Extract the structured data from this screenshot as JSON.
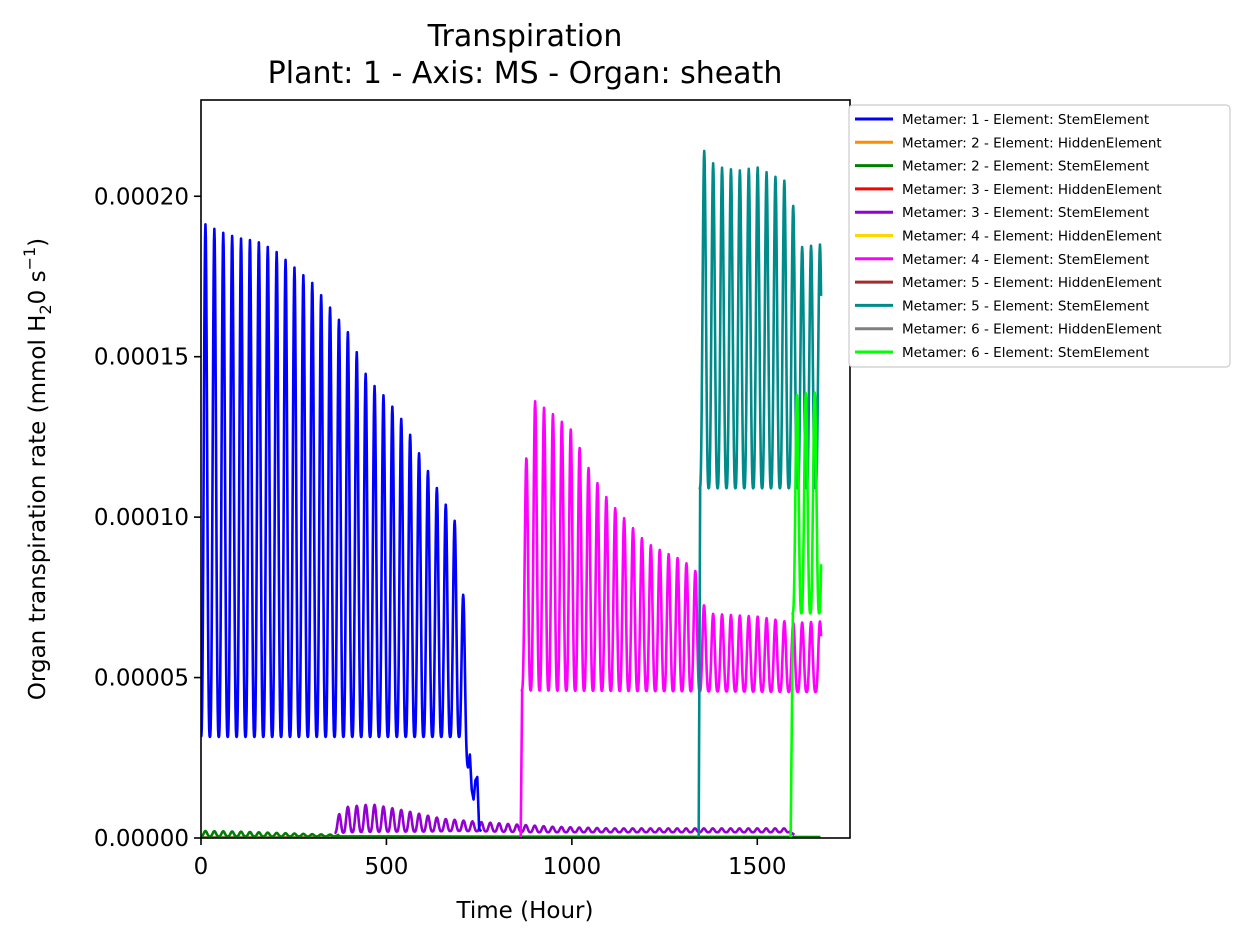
{
  "chart_data": {
    "type": "line",
    "title": "Transpiration",
    "subtitle": "Plant: 1 - Axis: MS - Organ: sheath",
    "xlabel": "Time (Hour)",
    "ylabel_prefix": "Organ transpiration rate (mmol H",
    "ylabel_sub": "2",
    "ylabel_mid": "0 s",
    "ylabel_sup": "−1",
    "ylabel_suffix": ")",
    "xlim": [
      0,
      1750
    ],
    "ylim": [
      0,
      0.00023
    ],
    "x_ticks": [
      0,
      500,
      1000,
      1500
    ],
    "x_tick_labels": [
      "0",
      "500",
      "1000",
      "1500"
    ],
    "y_ticks": [
      0,
      5e-05,
      0.0001,
      0.00015,
      0.0002
    ],
    "y_tick_labels": [
      "0.00000",
      "0.00005",
      "0.00010",
      "0.00015",
      "0.00020"
    ],
    "grid": false,
    "legend_placement": "outside upper right",
    "series": [
      {
        "name": "Metamer: 1 - Element: StemElement",
        "color": "#0000ff",
        "oscillating": true,
        "start": 0,
        "end": 720,
        "period": 24,
        "base": [
          [
            0,
            3.15e-05
          ],
          [
            700,
            3.15e-05
          ],
          [
            710,
            2.5e-05
          ],
          [
            720,
            2.2e-05
          ]
        ],
        "peak": [
          [
            0,
            0.000192
          ],
          [
            50,
            0.000189
          ],
          [
            100,
            0.000187
          ],
          [
            150,
            0.000186
          ],
          [
            200,
            0.000183
          ],
          [
            250,
            0.000178
          ],
          [
            300,
            0.000173
          ],
          [
            350,
            0.000165
          ],
          [
            400,
            0.000157
          ],
          [
            450,
            0.000143
          ],
          [
            500,
            0.000137
          ],
          [
            550,
            0.000129
          ],
          [
            600,
            0.000117
          ],
          [
            650,
            0.000106
          ],
          [
            700,
            9.55e-05
          ],
          [
            715,
            5.6e-05
          ]
        ],
        "tail": [
          [
            720,
            2.2e-05
          ],
          [
            725,
            2.6e-05
          ],
          [
            730,
            1.5e-05
          ],
          [
            735,
            1.2e-05
          ],
          [
            740,
            1.8e-05
          ],
          [
            745,
            1.9e-05
          ],
          [
            750,
            3e-06
          ],
          [
            755,
            2e-06
          ]
        ]
      },
      {
        "name": "Metamer: 2 - Element: HiddenElement",
        "color": "#ff8c00",
        "oscillating": false,
        "points": [
          [
            0,
            2e-07
          ],
          [
            1670,
            2e-07
          ]
        ]
      },
      {
        "name": "Metamer: 2 - Element: StemElement",
        "color": "#008000",
        "oscillating": true,
        "start": 0,
        "end": 370,
        "period": 24,
        "base": [
          [
            0,
            5e-07
          ],
          [
            370,
            5e-07
          ]
        ],
        "peak": [
          [
            0,
            2.2e-06
          ],
          [
            100,
            2e-06
          ],
          [
            200,
            1.6e-06
          ],
          [
            300,
            1.2e-06
          ],
          [
            370,
            1e-06
          ]
        ],
        "tail": [
          [
            370,
            5e-07
          ],
          [
            1670,
            3e-07
          ]
        ]
      },
      {
        "name": "Metamer: 3 - Element: HiddenElement",
        "color": "#ff0000",
        "oscillating": false,
        "points": [
          [
            0,
            1e-07
          ],
          [
            1670,
            1e-07
          ]
        ]
      },
      {
        "name": "Metamer: 3 - Element: StemElement",
        "color": "#9400d3",
        "oscillating": true,
        "start": 360,
        "end": 1590,
        "period": 24,
        "base": [
          [
            360,
            1.5e-06
          ],
          [
            400,
            1.8e-06
          ],
          [
            500,
            2e-06
          ],
          [
            600,
            2e-06
          ],
          [
            700,
            2.2e-06
          ],
          [
            800,
            2e-06
          ],
          [
            900,
            1.8e-06
          ],
          [
            1590,
            1.8e-06
          ]
        ],
        "peak": [
          [
            360,
            4e-06
          ],
          [
            380,
            9.5e-06
          ],
          [
            460,
            1.05e-05
          ],
          [
            550,
            8.5e-06
          ],
          [
            650,
            6e-06
          ],
          [
            750,
            5e-06
          ],
          [
            850,
            4.2e-06
          ],
          [
            950,
            3.5e-06
          ],
          [
            1100,
            3e-06
          ],
          [
            1590,
            3e-06
          ]
        ],
        "tail": [
          [
            1590,
            1.8e-06
          ],
          [
            1600,
            1e-06
          ]
        ]
      },
      {
        "name": "Metamer: 4 - Element: HiddenElement",
        "color": "#ffd700",
        "oscillating": false,
        "points": [
          [
            0,
            1e-07
          ],
          [
            1670,
            1e-07
          ]
        ]
      },
      {
        "name": "Metamer: 4 - Element: StemElement",
        "color": "#ff00ff",
        "oscillating": true,
        "start": 865,
        "end": 1672,
        "period": 24,
        "base": [
          [
            865,
            4.6e-05
          ],
          [
            1672,
            4.55e-05
          ]
        ],
        "peak": [
          [
            865,
            0.000101
          ],
          [
            890,
            0.000137
          ],
          [
            950,
            0.000132
          ],
          [
            1000,
            0.000127
          ],
          [
            1050,
            0.000114
          ],
          [
            1100,
            0.000105
          ],
          [
            1150,
            9.85e-05
          ],
          [
            1200,
            9.2e-05
          ],
          [
            1250,
            8.9e-05
          ],
          [
            1300,
            8.65e-05
          ],
          [
            1330,
            8.35e-05
          ],
          [
            1345,
            8.2e-05
          ],
          [
            1360,
            7e-05
          ],
          [
            1500,
            6.9e-05
          ],
          [
            1600,
            6.7e-05
          ],
          [
            1672,
            6.75e-05
          ]
        ],
        "lead": [
          [
            862,
            0
          ],
          [
            866,
            4.6e-05
          ]
        ]
      },
      {
        "name": "Metamer: 5 - Element: HiddenElement",
        "color": "#a52a2a",
        "oscillating": false,
        "points": [
          [
            0,
            1e-07
          ],
          [
            1670,
            1e-07
          ]
        ]
      },
      {
        "name": "Metamer: 5 - Element: StemElement",
        "color": "#008b8b",
        "oscillating": true,
        "start": 1345,
        "end": 1672,
        "period": 24,
        "base": [
          [
            1345,
            0.000109
          ],
          [
            1672,
            0.000109
          ]
        ],
        "peak": [
          [
            1345,
            0.000217
          ],
          [
            1370,
            0.000211
          ],
          [
            1400,
            0.000209
          ],
          [
            1450,
            0.000208
          ],
          [
            1500,
            0.000209
          ],
          [
            1550,
            0.000206
          ],
          [
            1590,
            0.000204
          ],
          [
            1610,
            0.000184
          ],
          [
            1672,
            0.000185
          ]
        ],
        "lead": [
          [
            1342,
            0
          ],
          [
            1346,
            0.000109
          ]
        ]
      },
      {
        "name": "Metamer: 6 - Element: HiddenElement",
        "color": "#808080",
        "oscillating": false,
        "points": [
          [
            0,
            1e-07
          ],
          [
            1670,
            1e-07
          ]
        ]
      },
      {
        "name": "Metamer: 6 - Element: StemElement",
        "color": "#00ff00",
        "oscillating": true,
        "start": 1595,
        "end": 1672,
        "period": 24,
        "base": [
          [
            1595,
            7e-05
          ],
          [
            1672,
            7e-05
          ]
        ],
        "peak": [
          [
            1595,
            0.00011
          ],
          [
            1605,
            0.000138
          ],
          [
            1650,
            0.000139
          ],
          [
            1672,
            0.000138
          ]
        ],
        "lead": [
          [
            1590,
            0
          ],
          [
            1596,
            7e-05
          ]
        ]
      }
    ]
  }
}
